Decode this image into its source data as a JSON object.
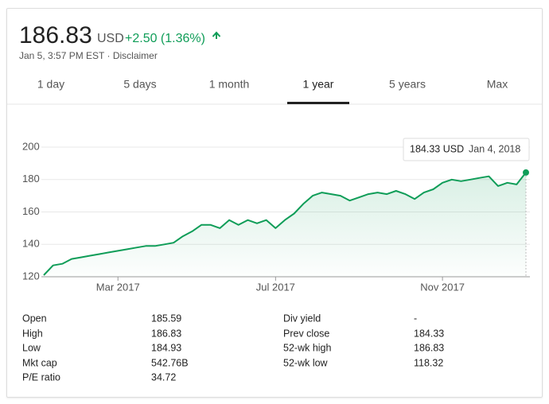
{
  "header": {
    "price": "186.83",
    "currency": "USD",
    "change": "+2.50 (1.36%)",
    "timestamp": "Jan 5, 3:57 PM EST · Disclaimer"
  },
  "tabs": {
    "items": [
      "1 day",
      "5 days",
      "1 month",
      "1 year",
      "5 years",
      "Max"
    ],
    "selected": 3
  },
  "chart_data": {
    "type": "line",
    "values": [
      121,
      127,
      128,
      131,
      132,
      133,
      134,
      135,
      136,
      137,
      138,
      139,
      139,
      140,
      141,
      145,
      148,
      152,
      152,
      150,
      155,
      152,
      155,
      153,
      155,
      150,
      155,
      159,
      165,
      170,
      172,
      171,
      170,
      167,
      169,
      171,
      172,
      171,
      173,
      171,
      168,
      172,
      174,
      178,
      180,
      179,
      180,
      181,
      182,
      176,
      178,
      177,
      184.33
    ],
    "color": "#0f9d58",
    "xlim": [
      0,
      52
    ],
    "xticks": [
      {
        "value": 8,
        "label": "Mar 2017"
      },
      {
        "value": 25,
        "label": "Jul 2017"
      },
      {
        "value": 43,
        "label": "Nov 2017"
      }
    ],
    "ylim": [
      120,
      200
    ],
    "yticks": [
      120,
      140,
      160,
      180,
      200
    ],
    "grid": true,
    "tooltip": {
      "price": "184.33 USD",
      "date": "Jan 4, 2018"
    }
  },
  "stats": [
    {
      "label": "Open",
      "value": "185.59"
    },
    {
      "label": "High",
      "value": "186.83"
    },
    {
      "label": "Low",
      "value": "184.93"
    },
    {
      "label": "Mkt cap",
      "value": "542.76B"
    },
    {
      "label": "P/E ratio",
      "value": "34.72"
    },
    {
      "label": "Div yield",
      "value": "-"
    },
    {
      "label": "Prev close",
      "value": "184.33"
    },
    {
      "label": "52-wk high",
      "value": "186.83"
    },
    {
      "label": "52-wk low",
      "value": "118.32"
    }
  ]
}
